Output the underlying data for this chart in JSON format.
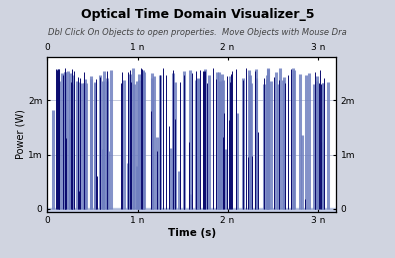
{
  "title": "Optical Time Domain Visualizer_5",
  "subtitle": "Dbl Click On Objects to open properties.  Move Objects with Mouse Dra",
  "xlabel": "Time (s)",
  "ylabel": "Power (W)",
  "xlim": [
    0,
    3.2e-09
  ],
  "ylim": [
    -5e-05,
    0.0028
  ],
  "yticks": [
    0,
    0.001,
    0.002
  ],
  "ytick_labels": [
    "0",
    "1m",
    "2m"
  ],
  "xticks": [
    0,
    1e-09,
    2e-09,
    3e-09
  ],
  "xtick_labels": [
    "0",
    "1 n",
    "2 n",
    "3 n"
  ],
  "background_color": "#d0d4e0",
  "plot_bg_color": "#ffffff",
  "grid_color": "#b0b8d0",
  "title_color": "#000000",
  "subtitle_color": "#444444",
  "title_fontsize": 9,
  "subtitle_fontsize": 6,
  "pulse_color_light": "#7080c0",
  "pulse_color_dark": "#0a0a6e",
  "baseline_color": "#a0b0d8",
  "seed": 42,
  "total_time": 3.2e-09,
  "max_power": 0.0026
}
